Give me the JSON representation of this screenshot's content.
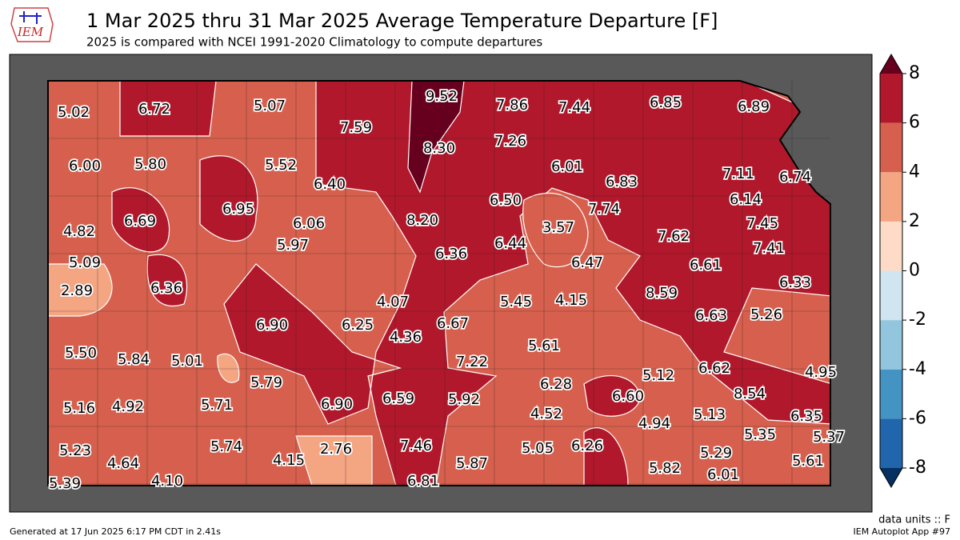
{
  "header": {
    "logo": "IEM",
    "title": "1 Mar 2025 thru 31 Mar 2025 Average Temperature Departure [F]",
    "subtitle": "2025 is compared with NCEI 1991-2020 Climatology to compute departures"
  },
  "map": {
    "values": [
      5.02,
      6.72,
      5.07,
      7.59,
      9.52,
      7.86,
      7.44,
      6.85,
      6.89,
      6.0,
      5.8,
      5.52,
      6.4,
      8.3,
      7.26,
      6.01,
      6.83,
      7.11,
      6.74,
      6.14,
      7.74,
      6.5,
      8.2,
      6.95,
      6.06,
      6.69,
      4.82,
      3.57,
      7.62,
      7.45,
      7.41,
      5.09,
      5.97,
      6.36,
      6.44,
      6.47,
      6.61,
      6.33,
      2.89,
      6.36,
      4.07,
      5.45,
      4.15,
      8.59,
      6.63,
      5.26,
      6.9,
      6.25,
      4.36,
      6.67,
      5.5,
      5.84,
      5.01,
      5.61,
      7.22,
      6.62,
      4.95,
      5.12,
      5.79,
      6.28,
      8.54,
      6.6,
      5.16,
      4.92,
      5.71,
      6.9,
      6.59,
      5.92,
      4.52,
      4.94,
      5.13,
      6.35,
      5.35,
      5.37,
      5.23,
      4.64,
      5.74,
      4.15,
      2.76,
      7.46,
      5.87,
      5.05,
      6.26,
      5.82,
      5.29,
      5.61,
      6.01,
      5.39,
      4.1,
      6.81
    ],
    "value_labels": [
      "5.02",
      "6.72",
      "5.07",
      "7.59",
      "9.52",
      "7.86",
      "7.44",
      "6.85",
      "6.89",
      "6.00",
      "5.80",
      "5.52",
      "6.40",
      "8.30",
      "7.26",
      "6.01",
      "6.83",
      "7.11",
      "6.74",
      "6.14",
      "7.74",
      "6.50",
      "8.20",
      "6.95",
      "6.06",
      "6.69",
      "4.82",
      "3.57",
      "7.62",
      "7.45",
      "7.41",
      "5.09",
      "5.97",
      "6.36",
      "6.44",
      "6.47",
      "6.61",
      "6.33",
      "2.89",
      "6.36",
      "4.07",
      "5.45",
      "4.15",
      "8.59",
      "6.63",
      "5.26",
      "6.90",
      "6.25",
      "4.36",
      "6.67",
      "5.50",
      "5.84",
      "5.01",
      "5.61",
      "7.22",
      "6.62",
      "4.95",
      "5.12",
      "5.79",
      "6.28",
      "8.54",
      "6.60",
      "5.16",
      "4.92",
      "5.71",
      "6.90",
      "6.59",
      "5.92",
      "4.52",
      "4.94",
      "5.13",
      "6.35",
      "5.35",
      "5.37",
      "5.23",
      "4.64",
      "5.74",
      "4.15",
      "2.76",
      "7.46",
      "5.87",
      "5.05",
      "6.26",
      "5.82",
      "5.29",
      "5.61",
      "6.01",
      "5.39",
      "4.10",
      "6.81"
    ]
  },
  "colorbar": {
    "clim": [
      -8,
      8
    ],
    "ticks": [
      -8,
      -6,
      -4,
      -2,
      0,
      2,
      4,
      6,
      8
    ],
    "colors": [
      "#2166ac",
      "#4393c3",
      "#92c5de",
      "#d1e5f0",
      "#fddbc7",
      "#f4a582",
      "#d6604d",
      "#b2182b"
    ],
    "under": "#053061",
    "over": "#67001f"
  },
  "footer": {
    "units": "data units :: F",
    "generated": "Generated at 17 Jun 2025 6:17 PM CDT in 2.41s",
    "app": "IEM Autoplot App #97"
  }
}
